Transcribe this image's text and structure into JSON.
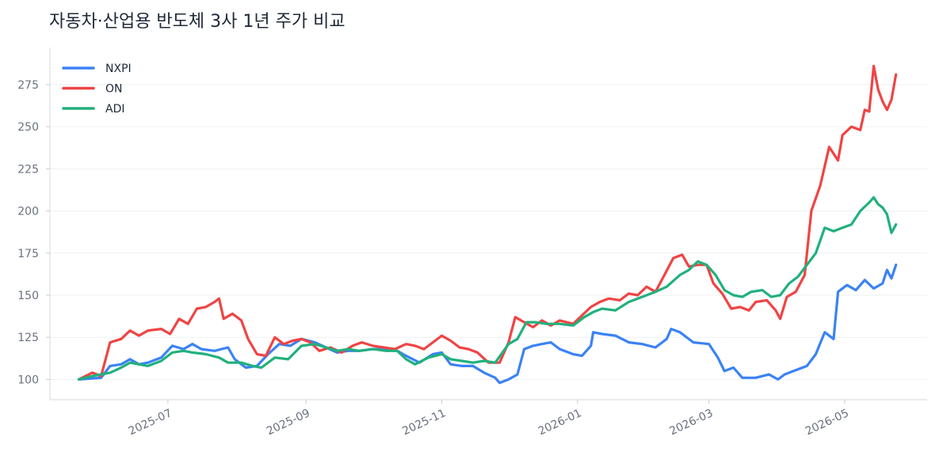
{
  "chart_data": {
    "type": "line",
    "title": "자동차·산업용 반도체 3사 1년 주가 비교",
    "xlabel": "",
    "ylabel": "",
    "ylim": [
      88,
      297
    ],
    "xlim": [
      "2025-05-09",
      "2026-06-07"
    ],
    "yticks": [
      100,
      125,
      150,
      175,
      200,
      225,
      250,
      275
    ],
    "xticks": [
      "2025-07",
      "2025-09",
      "2025-11",
      "2026-01",
      "2026-03",
      "2026-05"
    ],
    "grid": "horizontal",
    "legend_position": "top-left",
    "series": [
      {
        "name": "NXPI",
        "color": "#3b82f6",
        "points": [
          [
            "2025-05-22",
            100
          ],
          [
            "2025-06-01",
            101
          ],
          [
            "2025-06-05",
            108
          ],
          [
            "2025-06-10",
            109
          ],
          [
            "2025-06-14",
            112
          ],
          [
            "2025-06-18",
            109
          ],
          [
            "2025-06-22",
            110
          ],
          [
            "2025-06-28",
            113
          ],
          [
            "2025-07-03",
            120
          ],
          [
            "2025-07-08",
            118
          ],
          [
            "2025-07-12",
            121
          ],
          [
            "2025-07-16",
            118
          ],
          [
            "2025-07-22",
            117
          ],
          [
            "2025-07-28",
            119
          ],
          [
            "2025-07-31",
            112
          ],
          [
            "2025-08-05",
            107
          ],
          [
            "2025-08-10",
            108
          ],
          [
            "2025-08-15",
            115
          ],
          [
            "2025-08-20",
            121
          ],
          [
            "2025-08-25",
            120
          ],
          [
            "2025-08-30",
            124
          ],
          [
            "2025-09-05",
            122
          ],
          [
            "2025-09-10",
            119
          ],
          [
            "2025-09-15",
            116
          ],
          [
            "2025-09-20",
            117
          ],
          [
            "2025-09-25",
            117
          ],
          [
            "2025-10-01",
            118
          ],
          [
            "2025-10-07",
            118
          ],
          [
            "2025-10-12",
            117
          ],
          [
            "2025-10-16",
            114
          ],
          [
            "2025-10-22",
            110
          ],
          [
            "2025-10-28",
            115
          ],
          [
            "2025-11-01",
            116
          ],
          [
            "2025-11-05",
            109
          ],
          [
            "2025-11-10",
            108
          ],
          [
            "2025-11-15",
            108
          ],
          [
            "2025-11-20",
            104
          ],
          [
            "2025-11-25",
            101
          ],
          [
            "2025-11-27",
            98
          ],
          [
            "2025-12-01",
            100
          ],
          [
            "2025-12-05",
            103
          ],
          [
            "2025-12-08",
            118
          ],
          [
            "2025-12-12",
            120
          ],
          [
            "2025-12-16",
            121
          ],
          [
            "2025-12-20",
            122
          ],
          [
            "2025-12-24",
            118
          ],
          [
            "2025-12-30",
            115
          ],
          [
            "2026-01-03",
            114
          ],
          [
            "2026-01-07",
            120
          ],
          [
            "2026-01-08",
            128
          ],
          [
            "2026-01-12",
            127
          ],
          [
            "2026-01-18",
            126
          ],
          [
            "2026-01-24",
            122
          ],
          [
            "2026-01-30",
            121
          ],
          [
            "2026-02-05",
            119
          ],
          [
            "2026-02-10",
            124
          ],
          [
            "2026-02-12",
            130
          ],
          [
            "2026-02-16",
            128
          ],
          [
            "2026-02-22",
            122
          ],
          [
            "2026-03-01",
            121
          ],
          [
            "2026-03-05",
            113
          ],
          [
            "2026-03-08",
            105
          ],
          [
            "2026-03-12",
            107
          ],
          [
            "2026-03-16",
            101
          ],
          [
            "2026-03-22",
            101
          ],
          [
            "2026-03-28",
            103
          ],
          [
            "2026-04-01",
            100
          ],
          [
            "2026-04-04",
            103
          ],
          [
            "2026-04-08",
            105
          ],
          [
            "2026-04-14",
            108
          ],
          [
            "2026-04-18",
            115
          ],
          [
            "2026-04-22",
            128
          ],
          [
            "2026-04-26",
            124
          ],
          [
            "2026-04-28",
            152
          ],
          [
            "2026-05-02",
            156
          ],
          [
            "2026-05-06",
            153
          ],
          [
            "2026-05-10",
            159
          ],
          [
            "2026-05-14",
            154
          ],
          [
            "2026-05-18",
            157
          ],
          [
            "2026-05-20",
            165
          ],
          [
            "2026-05-22",
            160
          ],
          [
            "2026-05-24",
            168
          ]
        ]
      },
      {
        "name": "ON",
        "color": "#ef4444",
        "points": [
          [
            "2025-05-22",
            100
          ],
          [
            "2025-05-28",
            104
          ],
          [
            "2025-06-01",
            102
          ],
          [
            "2025-06-05",
            122
          ],
          [
            "2025-06-10",
            124
          ],
          [
            "2025-06-14",
            129
          ],
          [
            "2025-06-18",
            126
          ],
          [
            "2025-06-22",
            129
          ],
          [
            "2025-06-28",
            130
          ],
          [
            "2025-07-02",
            127
          ],
          [
            "2025-07-06",
            136
          ],
          [
            "2025-07-10",
            133
          ],
          [
            "2025-07-14",
            142
          ],
          [
            "2025-07-18",
            143
          ],
          [
            "2025-07-22",
            146
          ],
          [
            "2025-07-24",
            148
          ],
          [
            "2025-07-26",
            136
          ],
          [
            "2025-07-30",
            139
          ],
          [
            "2025-08-03",
            135
          ],
          [
            "2025-08-06",
            124
          ],
          [
            "2025-08-10",
            115
          ],
          [
            "2025-08-14",
            114
          ],
          [
            "2025-08-18",
            125
          ],
          [
            "2025-08-22",
            121
          ],
          [
            "2025-08-26",
            123
          ],
          [
            "2025-08-30",
            124
          ],
          [
            "2025-09-03",
            122
          ],
          [
            "2025-09-07",
            117
          ],
          [
            "2025-09-12",
            119
          ],
          [
            "2025-09-17",
            116
          ],
          [
            "2025-09-22",
            120
          ],
          [
            "2025-09-26",
            122
          ],
          [
            "2025-10-01",
            120
          ],
          [
            "2025-10-06",
            119
          ],
          [
            "2025-10-11",
            118
          ],
          [
            "2025-10-16",
            121
          ],
          [
            "2025-10-20",
            120
          ],
          [
            "2025-10-24",
            118
          ],
          [
            "2025-10-28",
            122
          ],
          [
            "2025-11-01",
            126
          ],
          [
            "2025-11-05",
            123
          ],
          [
            "2025-11-09",
            119
          ],
          [
            "2025-11-13",
            118
          ],
          [
            "2025-11-17",
            116
          ],
          [
            "2025-11-22",
            110
          ],
          [
            "2025-11-27",
            110
          ],
          [
            "2025-12-01",
            122
          ],
          [
            "2025-12-04",
            137
          ],
          [
            "2025-12-08",
            134
          ],
          [
            "2025-12-12",
            131
          ],
          [
            "2025-12-16",
            135
          ],
          [
            "2025-12-20",
            132
          ],
          [
            "2025-12-24",
            135
          ],
          [
            "2025-12-30",
            133
          ],
          [
            "2026-01-03",
            138
          ],
          [
            "2026-01-07",
            143
          ],
          [
            "2026-01-11",
            146
          ],
          [
            "2026-01-15",
            148
          ],
          [
            "2026-01-20",
            147
          ],
          [
            "2026-01-24",
            151
          ],
          [
            "2026-01-28",
            150
          ],
          [
            "2026-02-01",
            155
          ],
          [
            "2026-02-05",
            152
          ],
          [
            "2026-02-09",
            162
          ],
          [
            "2026-02-13",
            172
          ],
          [
            "2026-02-17",
            174
          ],
          [
            "2026-02-20",
            167
          ],
          [
            "2026-02-24",
            168
          ],
          [
            "2026-02-28",
            168
          ],
          [
            "2026-03-03",
            157
          ],
          [
            "2026-03-07",
            151
          ],
          [
            "2026-03-11",
            142
          ],
          [
            "2026-03-15",
            143
          ],
          [
            "2026-03-19",
            141
          ],
          [
            "2026-03-22",
            146
          ],
          [
            "2026-03-27",
            147
          ],
          [
            "2026-03-31",
            141
          ],
          [
            "2026-04-02",
            136
          ],
          [
            "2026-04-05",
            149
          ],
          [
            "2026-04-09",
            152
          ],
          [
            "2026-04-13",
            162
          ],
          [
            "2026-04-16",
            200
          ],
          [
            "2026-04-20",
            215
          ],
          [
            "2026-04-24",
            238
          ],
          [
            "2026-04-28",
            230
          ],
          [
            "2026-04-30",
            245
          ],
          [
            "2026-05-04",
            250
          ],
          [
            "2026-05-08",
            248
          ],
          [
            "2026-05-10",
            260
          ],
          [
            "2026-05-12",
            259
          ],
          [
            "2026-05-14",
            286
          ],
          [
            "2026-05-16",
            272
          ],
          [
            "2026-05-18",
            265
          ],
          [
            "2026-05-20",
            260
          ],
          [
            "2026-05-22",
            266
          ],
          [
            "2026-05-24",
            281
          ]
        ]
      },
      {
        "name": "ADI",
        "color": "#22b07d",
        "points": [
          [
            "2025-05-22",
            100
          ],
          [
            "2025-05-28",
            102
          ],
          [
            "2025-06-01",
            103
          ],
          [
            "2025-06-05",
            104
          ],
          [
            "2025-06-10",
            107
          ],
          [
            "2025-06-14",
            110
          ],
          [
            "2025-06-18",
            109
          ],
          [
            "2025-06-22",
            108
          ],
          [
            "2025-06-28",
            111
          ],
          [
            "2025-07-03",
            116
          ],
          [
            "2025-07-08",
            117
          ],
          [
            "2025-07-12",
            116
          ],
          [
            "2025-07-18",
            115
          ],
          [
            "2025-07-24",
            113
          ],
          [
            "2025-07-28",
            110
          ],
          [
            "2025-08-03",
            110
          ],
          [
            "2025-08-08",
            108
          ],
          [
            "2025-08-12",
            107
          ],
          [
            "2025-08-18",
            113
          ],
          [
            "2025-08-24",
            112
          ],
          [
            "2025-08-30",
            120
          ],
          [
            "2025-09-05",
            121
          ],
          [
            "2025-09-10",
            119
          ],
          [
            "2025-09-15",
            117
          ],
          [
            "2025-09-20",
            118
          ],
          [
            "2025-09-25",
            117
          ],
          [
            "2025-10-01",
            118
          ],
          [
            "2025-10-07",
            117
          ],
          [
            "2025-10-12",
            117
          ],
          [
            "2025-10-16",
            112
          ],
          [
            "2025-10-20",
            109
          ],
          [
            "2025-10-26",
            113
          ],
          [
            "2025-11-01",
            115
          ],
          [
            "2025-11-05",
            112
          ],
          [
            "2025-11-10",
            111
          ],
          [
            "2025-11-15",
            110
          ],
          [
            "2025-11-20",
            111
          ],
          [
            "2025-11-25",
            110
          ],
          [
            "2025-12-01",
            121
          ],
          [
            "2025-12-05",
            124
          ],
          [
            "2025-12-09",
            134
          ],
          [
            "2025-12-13",
            134
          ],
          [
            "2025-12-18",
            133
          ],
          [
            "2025-12-24",
            133
          ],
          [
            "2025-12-30",
            132
          ],
          [
            "2026-01-04",
            137
          ],
          [
            "2026-01-08",
            140
          ],
          [
            "2026-01-12",
            142
          ],
          [
            "2026-01-18",
            141
          ],
          [
            "2026-01-24",
            146
          ],
          [
            "2026-01-30",
            149
          ],
          [
            "2026-02-05",
            152
          ],
          [
            "2026-02-10",
            155
          ],
          [
            "2026-02-16",
            162
          ],
          [
            "2026-02-20",
            165
          ],
          [
            "2026-02-24",
            170
          ],
          [
            "2026-02-28",
            168
          ],
          [
            "2026-03-04",
            162
          ],
          [
            "2026-03-08",
            153
          ],
          [
            "2026-03-12",
            150
          ],
          [
            "2026-03-16",
            149
          ],
          [
            "2026-03-20",
            152
          ],
          [
            "2026-03-25",
            153
          ],
          [
            "2026-03-29",
            149
          ],
          [
            "2026-04-02",
            150
          ],
          [
            "2026-04-06",
            157
          ],
          [
            "2026-04-10",
            161
          ],
          [
            "2026-04-14",
            168
          ],
          [
            "2026-04-18",
            175
          ],
          [
            "2026-04-22",
            190
          ],
          [
            "2026-04-26",
            188
          ],
          [
            "2026-04-30",
            190
          ],
          [
            "2026-05-04",
            192
          ],
          [
            "2026-05-08",
            200
          ],
          [
            "2026-05-12",
            205
          ],
          [
            "2026-05-14",
            208
          ],
          [
            "2026-05-16",
            204
          ],
          [
            "2026-05-18",
            202
          ],
          [
            "2026-05-20",
            198
          ],
          [
            "2026-05-22",
            187
          ],
          [
            "2026-05-24",
            192
          ]
        ]
      }
    ]
  }
}
